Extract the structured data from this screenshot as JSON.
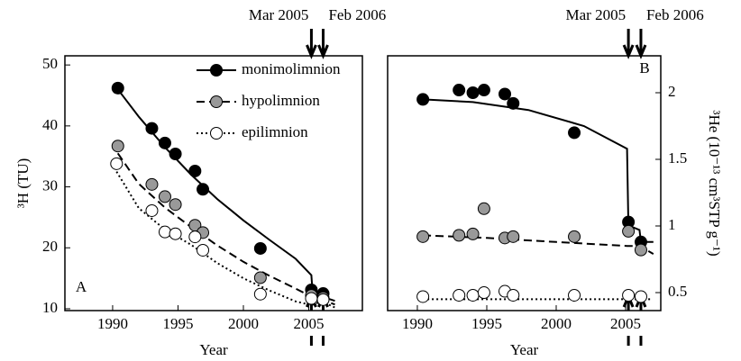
{
  "chart_data": [
    {
      "type": "scatter",
      "annotation": "A",
      "xlabel": "Year",
      "ylabel": "³H (TU)",
      "xlim": [
        1986.35,
        2009.1
      ],
      "ylim": [
        9.7,
        51.5
      ],
      "xticks": [
        1990,
        1995,
        2000,
        2005
      ],
      "yticks": [
        10,
        20,
        30,
        40,
        50
      ],
      "legend": "upper right",
      "events": [
        {
          "label": "Mar 2005",
          "x": 2005.2
        },
        {
          "label": "Feb 2006",
          "x": 2006.1
        }
      ],
      "series": [
        {
          "name": "monimolimnion",
          "color": "#000000",
          "dash": "solid",
          "x": [
            1990.4,
            1993,
            1994,
            1994.8,
            1996.3,
            1996.9,
            2001.3,
            2005.2,
            2006.1
          ],
          "values": [
            46.2,
            39.6,
            37.2,
            35.4,
            32.6,
            29.6,
            19.9,
            13.1,
            12.5
          ],
          "fit_x": [
            1990.4,
            1992,
            1994,
            1996,
            1998,
            2000,
            2002,
            2004,
            2005.2,
            2005.3,
            2006,
            2007
          ],
          "fit_values": [
            46,
            41.5,
            36.5,
            32,
            28,
            24.5,
            21.3,
            18.2,
            15.5,
            12.4,
            12,
            11.3
          ]
        },
        {
          "name": "hypolimnion",
          "color": "#999999",
          "dash": "dashed",
          "x": [
            1990.4,
            1993,
            1994,
            1994.8,
            1996.3,
            1996.9,
            2001.3,
            2005.2,
            2006.1
          ],
          "values": [
            36.7,
            30.4,
            28.4,
            27.1,
            23.7,
            22.5,
            15.1,
            12.2,
            11.8
          ],
          "fit_x": [
            1990.4,
            1992,
            1994,
            1996,
            1998,
            2000,
            2002,
            2004,
            2005.2,
            2006,
            2007
          ],
          "fit_values": [
            35.5,
            30.5,
            26.6,
            23.4,
            20.4,
            17.7,
            15.4,
            13.3,
            12,
            11.5,
            10.7
          ]
        },
        {
          "name": "epilimnion",
          "color": "#ffffff",
          "dash": "dotted",
          "x": [
            1990.3,
            1993,
            1994,
            1994.8,
            1996.3,
            1996.9,
            2001.3,
            2005.2,
            2006.1
          ],
          "values": [
            33.8,
            26.1,
            22.6,
            22.3,
            21.8,
            19.6,
            12.4,
            11.7,
            11.5
          ],
          "fit_x": [
            1990.3,
            1992,
            1994,
            1996,
            1998,
            2000,
            2002,
            2004,
            2005.2,
            2006,
            2007
          ],
          "fit_values": [
            32.5,
            26.5,
            23,
            20.5,
            17.5,
            15,
            13,
            11.2,
            10.6,
            11.2,
            10.2
          ]
        }
      ]
    },
    {
      "type": "scatter",
      "annotation": "B",
      "xlabel": "Year",
      "ylabel": "³He (10⁻¹³ cm³STP g⁻¹)",
      "xlim": [
        1987.86,
        2007.53
      ],
      "ylim": [
        0.365,
        2.277
      ],
      "xticks": [
        1990,
        1995,
        2000,
        2005
      ],
      "yticks": [
        0.5,
        1,
        1.5,
        2
      ],
      "events": [
        {
          "label": "Mar 2005",
          "x": 2005.2
        },
        {
          "label": "Feb 2006",
          "x": 2006.1
        }
      ],
      "series": [
        {
          "color": "#000000",
          "dash": "solid",
          "x": [
            1990.4,
            1993,
            1994,
            1994.8,
            1996.3,
            1996.9,
            2001.3,
            2005.2,
            2006.1
          ],
          "values": [
            1.95,
            2.02,
            2.0,
            2.02,
            1.99,
            1.92,
            1.7,
            1.03,
            0.88
          ],
          "fit_x": [
            1990.4,
            1994,
            1998,
            2002,
            2005.1,
            2005.2,
            2005.3,
            2006,
            2006.1,
            2007
          ],
          "fit_values": [
            1.95,
            1.93,
            1.87,
            1.75,
            1.58,
            1.0,
            1.0,
            0.97,
            0.88,
            0.88
          ]
        },
        {
          "color": "#999999",
          "dash": "dashed",
          "x": [
            1990.4,
            1993,
            1994,
            1994.8,
            1996.3,
            1996.9,
            2001.3,
            2005.2,
            2006.1
          ],
          "values": [
            0.92,
            0.93,
            0.94,
            1.13,
            0.91,
            0.92,
            0.92,
            0.96,
            0.82
          ],
          "fit_x": [
            1990.4,
            1995,
            2000,
            2005.1,
            2006,
            2007
          ],
          "fit_values": [
            0.93,
            0.91,
            0.88,
            0.85,
            0.85,
            0.79
          ]
        },
        {
          "color": "#ffffff",
          "dash": "dotted",
          "x": [
            1990.4,
            1993,
            1994,
            1994.8,
            1996.3,
            1996.9,
            2001.3,
            2005.2,
            2006.1
          ],
          "values": [
            0.47,
            0.48,
            0.48,
            0.5,
            0.51,
            0.48,
            0.48,
            0.48,
            0.47
          ],
          "fit_x": [
            1990.4,
            1995,
            2000,
            2005.1,
            2006,
            2006.8
          ],
          "fit_values": [
            0.45,
            0.45,
            0.45,
            0.45,
            0.45,
            0.45
          ]
        }
      ]
    }
  ]
}
